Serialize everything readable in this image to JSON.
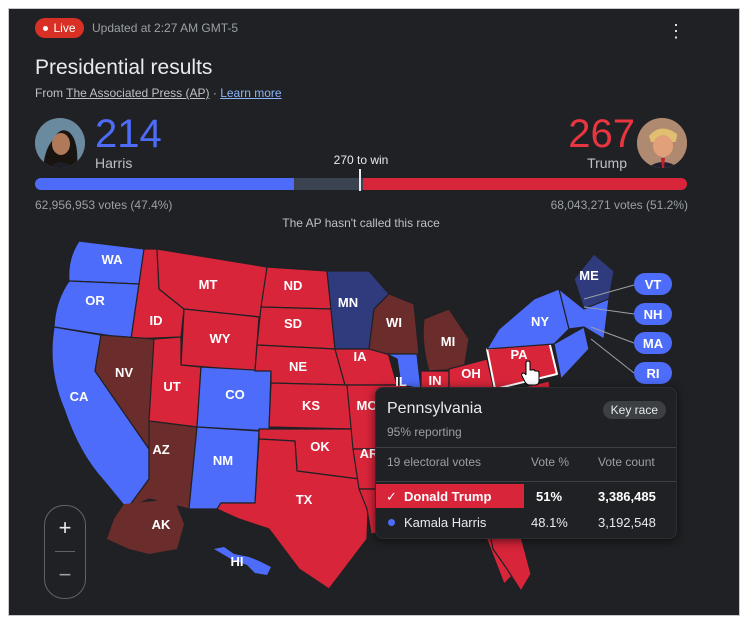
{
  "header": {
    "live_label": "Live",
    "updated": "Updated at 2:27 AM GMT-5",
    "menu_icon": "more-vert-icon",
    "title": "Presidential results",
    "source_prefix": "From ",
    "source_link": "The Associated Press (AP)",
    "source_sep": " · ",
    "learn_more": "Learn more"
  },
  "candidates": {
    "harris": {
      "name": "Harris",
      "electoral_votes": "214",
      "votes": "62,956,953 votes (47.4%)",
      "color": "#4d6cfa"
    },
    "trump": {
      "name": "Trump",
      "electoral_votes": "267",
      "votes": "68,043,271 votes (51.2%)",
      "color": "#d9253a"
    }
  },
  "bar": {
    "to_win_label": "270 to win",
    "total": 538,
    "harris": 214,
    "trump": 267
  },
  "status": "The AP hasn't called this race",
  "map": {
    "colors": {
      "dem": "#4d6cfa",
      "rep": "#d9253a",
      "dem_lead": "#2f3b7c",
      "rep_lead": "#6b2c2c"
    },
    "states": [
      "WA",
      "OR",
      "CA",
      "ID",
      "NV",
      "MT",
      "WY",
      "UT",
      "AZ",
      "CO",
      "NM",
      "ND",
      "SD",
      "NE",
      "KS",
      "OK",
      "TX",
      "MN",
      "IA",
      "MO",
      "AR",
      "WI",
      "IL",
      "MI",
      "IN",
      "OH",
      "PA",
      "NY",
      "ME",
      "AK",
      "HI"
    ],
    "side_boxes": [
      "VT",
      "NH",
      "MA",
      "RI"
    ]
  },
  "zoom": {
    "plus": "+",
    "minus": "−"
  },
  "tooltip": {
    "state": "Pennsylvania",
    "key_race": "Key race",
    "reporting": "95% reporting",
    "col_electoral": "19 electoral votes",
    "col_pct": "Vote %",
    "col_count": "Vote count",
    "rows": [
      {
        "check": "✓",
        "name": "Donald Trump",
        "pct": "51%",
        "count": "3,386,485"
      },
      {
        "name": "Kamala Harris",
        "pct": "48.1%",
        "count": "3,192,548"
      }
    ]
  }
}
